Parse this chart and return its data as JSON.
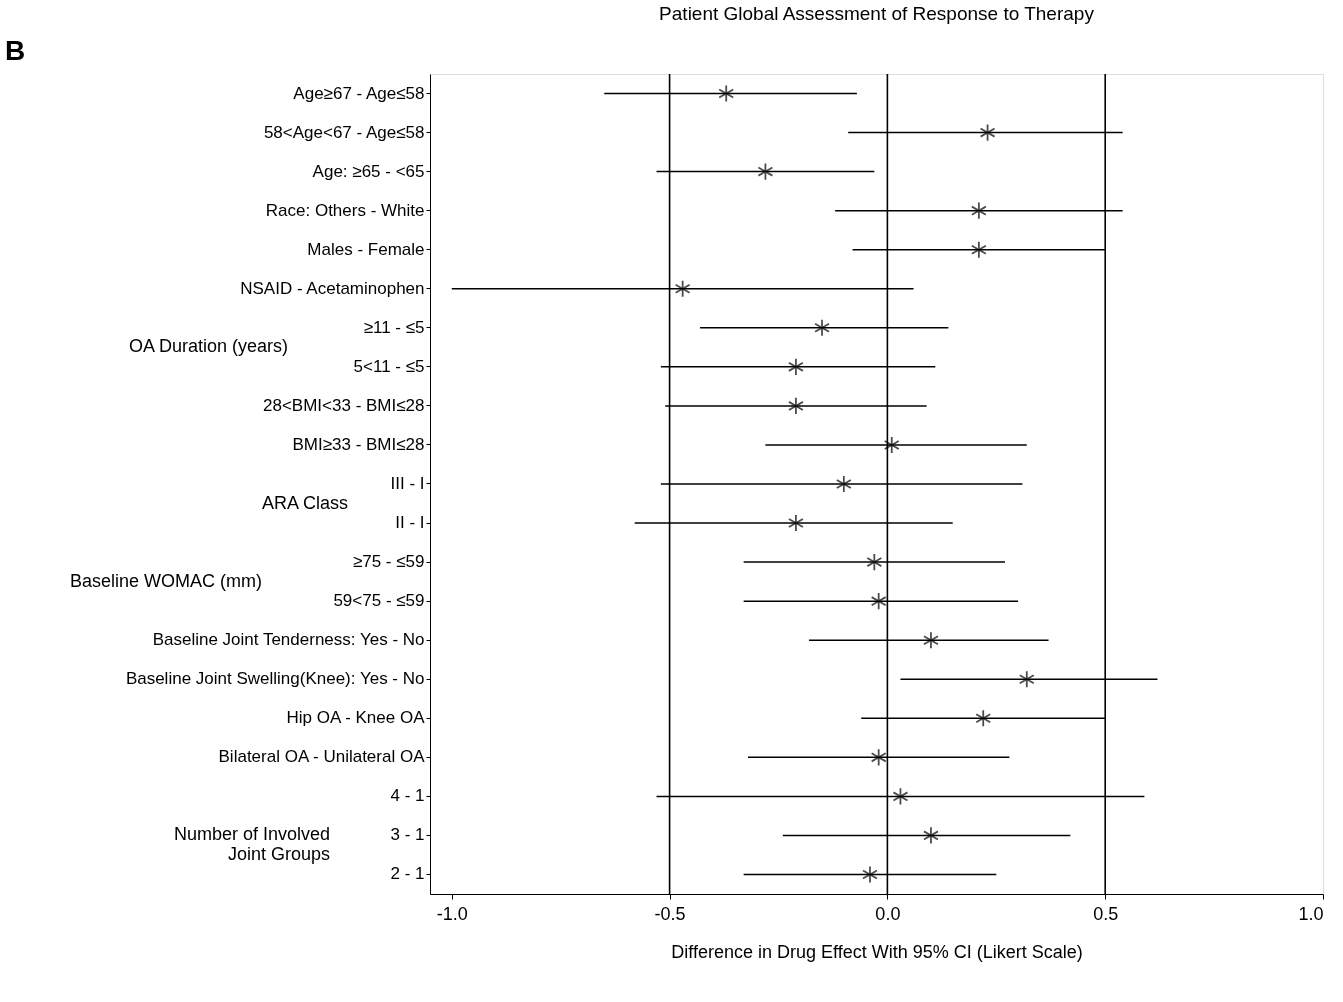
{
  "chart_data": {
    "type": "scatter",
    "orientation": "horizontal",
    "title": "Patient Global Assessment of Response to Therapy",
    "xlabel": "Difference in Drug Effect With 95% CI (Likert Scale)",
    "categories": [
      "Age≥67 - Age≤58",
      "58<Age<67 - Age≤58",
      "Age: ≥65 - <65",
      "Race: Others - White",
      "Males - Female",
      "NSAID - Acetaminophen",
      "≥11 - ≤5",
      "5<11 - ≤5",
      "28<BMI<33 - BMI≤28",
      "BMI≥33 - BMI≤28",
      "III - I",
      "II - I",
      "≥75 - ≤59",
      "59<75 - ≤59",
      "Baseline Joint Tenderness: Yes - No",
      "Baseline Joint Swelling(Knee): Yes - No",
      "Hip OA - Knee OA",
      "Bilateral OA - Unilateral OA",
      "4 - 1",
      "3 - 1",
      "2 - 1"
    ],
    "values": [
      -0.37,
      0.23,
      -0.28,
      0.21,
      0.21,
      -0.47,
      -0.15,
      -0.21,
      -0.21,
      0.01,
      -0.1,
      -0.21,
      -0.03,
      -0.02,
      0.1,
      0.32,
      0.22,
      -0.02,
      0.03,
      0.1,
      -0.04
    ],
    "errors": [
      [
        -0.65,
        -0.07
      ],
      [
        -0.09,
        0.54
      ],
      [
        -0.53,
        -0.03
      ],
      [
        -0.12,
        0.54
      ],
      [
        -0.08,
        0.5
      ],
      [
        -1.0,
        0.06
      ],
      [
        -0.43,
        0.14
      ],
      [
        -0.52,
        0.11
      ],
      [
        -0.51,
        0.09
      ],
      [
        -0.28,
        0.32
      ],
      [
        -0.52,
        0.31
      ],
      [
        -0.58,
        0.15
      ],
      [
        -0.33,
        0.27
      ],
      [
        -0.33,
        0.3
      ],
      [
        -0.18,
        0.37
      ],
      [
        0.03,
        0.62
      ],
      [
        -0.06,
        0.5
      ],
      [
        -0.32,
        0.28
      ],
      [
        -0.53,
        0.59
      ],
      [
        -0.24,
        0.42
      ],
      [
        -0.33,
        0.25
      ]
    ],
    "color": "#000000",
    "marker": "cross",
    "grid": false,
    "xlim": [
      -1.05,
      1.0
    ],
    "xticks": [
      {
        "value": -1,
        "label": "-1.0"
      },
      {
        "value": -0.5,
        "label": "-0.5"
      },
      {
        "value": 0,
        "label": "0.0"
      },
      {
        "value": 0.5,
        "label": "0.5"
      },
      {
        "value": 1,
        "label": "1.0"
      }
    ],
    "ref_lines": [
      {
        "axis": "x",
        "value": -0.5,
        "color": "#000000"
      },
      {
        "axis": "x",
        "value": 0,
        "color": "#000000"
      },
      {
        "axis": "x",
        "value": 0.5,
        "color": "#000000"
      }
    ],
    "annotations": [
      "B",
      "OA Duration (years)",
      "ARA Class",
      "Baseline WOMAC (mm)",
      "Number of Involved\nJoint Groups"
    ]
  }
}
